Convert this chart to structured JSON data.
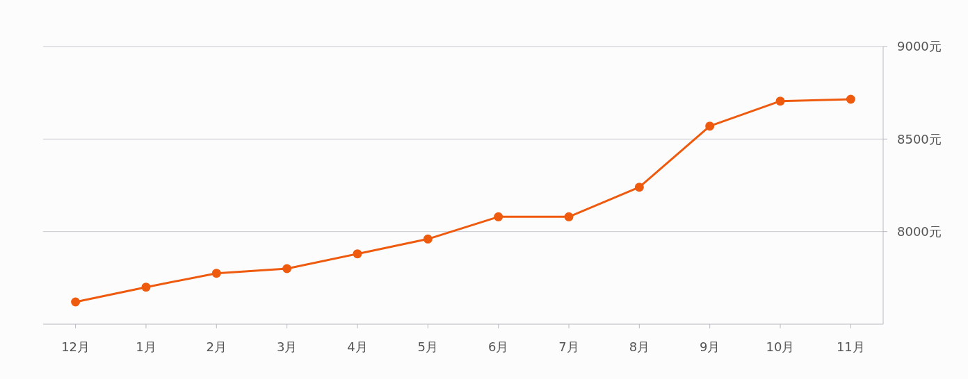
{
  "chart_data": {
    "type": "line",
    "categories": [
      "12月",
      "1月",
      "2月",
      "3月",
      "4月",
      "5月",
      "6月",
      "7月",
      "8月",
      "9月",
      "10月",
      "11月"
    ],
    "series": [
      {
        "color": "#ee5a0e",
        "values": [
          7620,
          7700,
          7775,
          7800,
          7880,
          7960,
          8080,
          8080,
          8240,
          8570,
          8705,
          8715
        ]
      }
    ],
    "ylim": [
      7500,
      9000
    ],
    "yticks": [
      {
        "value": 8000,
        "label": "8000元"
      },
      {
        "value": 8500,
        "label": "8500元"
      },
      {
        "value": 9000,
        "label": "9000元"
      }
    ],
    "grid": "y",
    "marker": "circle",
    "line_style": "solid"
  }
}
